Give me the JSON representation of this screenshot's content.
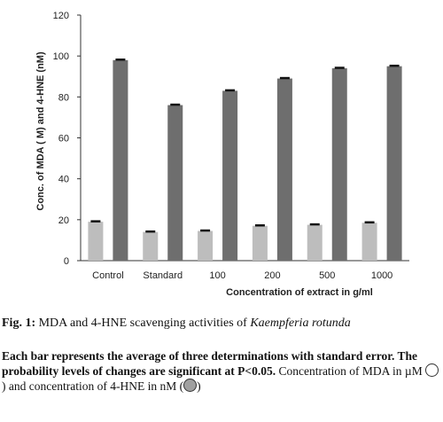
{
  "chart_data": {
    "type": "bar",
    "categories": [
      "Control",
      "Standard",
      "100",
      "200",
      "500",
      "1000"
    ],
    "series": [
      {
        "values": [
          19,
          14,
          14.5,
          17,
          17.5,
          18.5
        ],
        "color": "#bdbdbd"
      },
      {
        "values": [
          98,
          76,
          83,
          89,
          94,
          95
        ],
        "color": "#6e6e6e"
      }
    ],
    "error_bar_color": "#111111",
    "ylim": [
      0,
      120
    ],
    "yticks": [
      0,
      20,
      40,
      60,
      80,
      100,
      120
    ],
    "ylabel": "Conc. of MDA (  M) and 4-HNE (nM)",
    "xlabel": "Concentration of extract in  g/ml",
    "grid": false
  },
  "caption": {
    "label": "Fig. 1:",
    "text": "MDA and 4-HNE scavenging activities of",
    "species": "Kaempferia rotunda",
    "note_bold": "Each bar represents the average of three determinations with standard error. The probability levels of changes are significant at P<0.05.",
    "note_part1": "Concentration of MDA in µM",
    "note_part2": ") and concentration of 4-HNE in nM (",
    "note_part3": ")"
  }
}
